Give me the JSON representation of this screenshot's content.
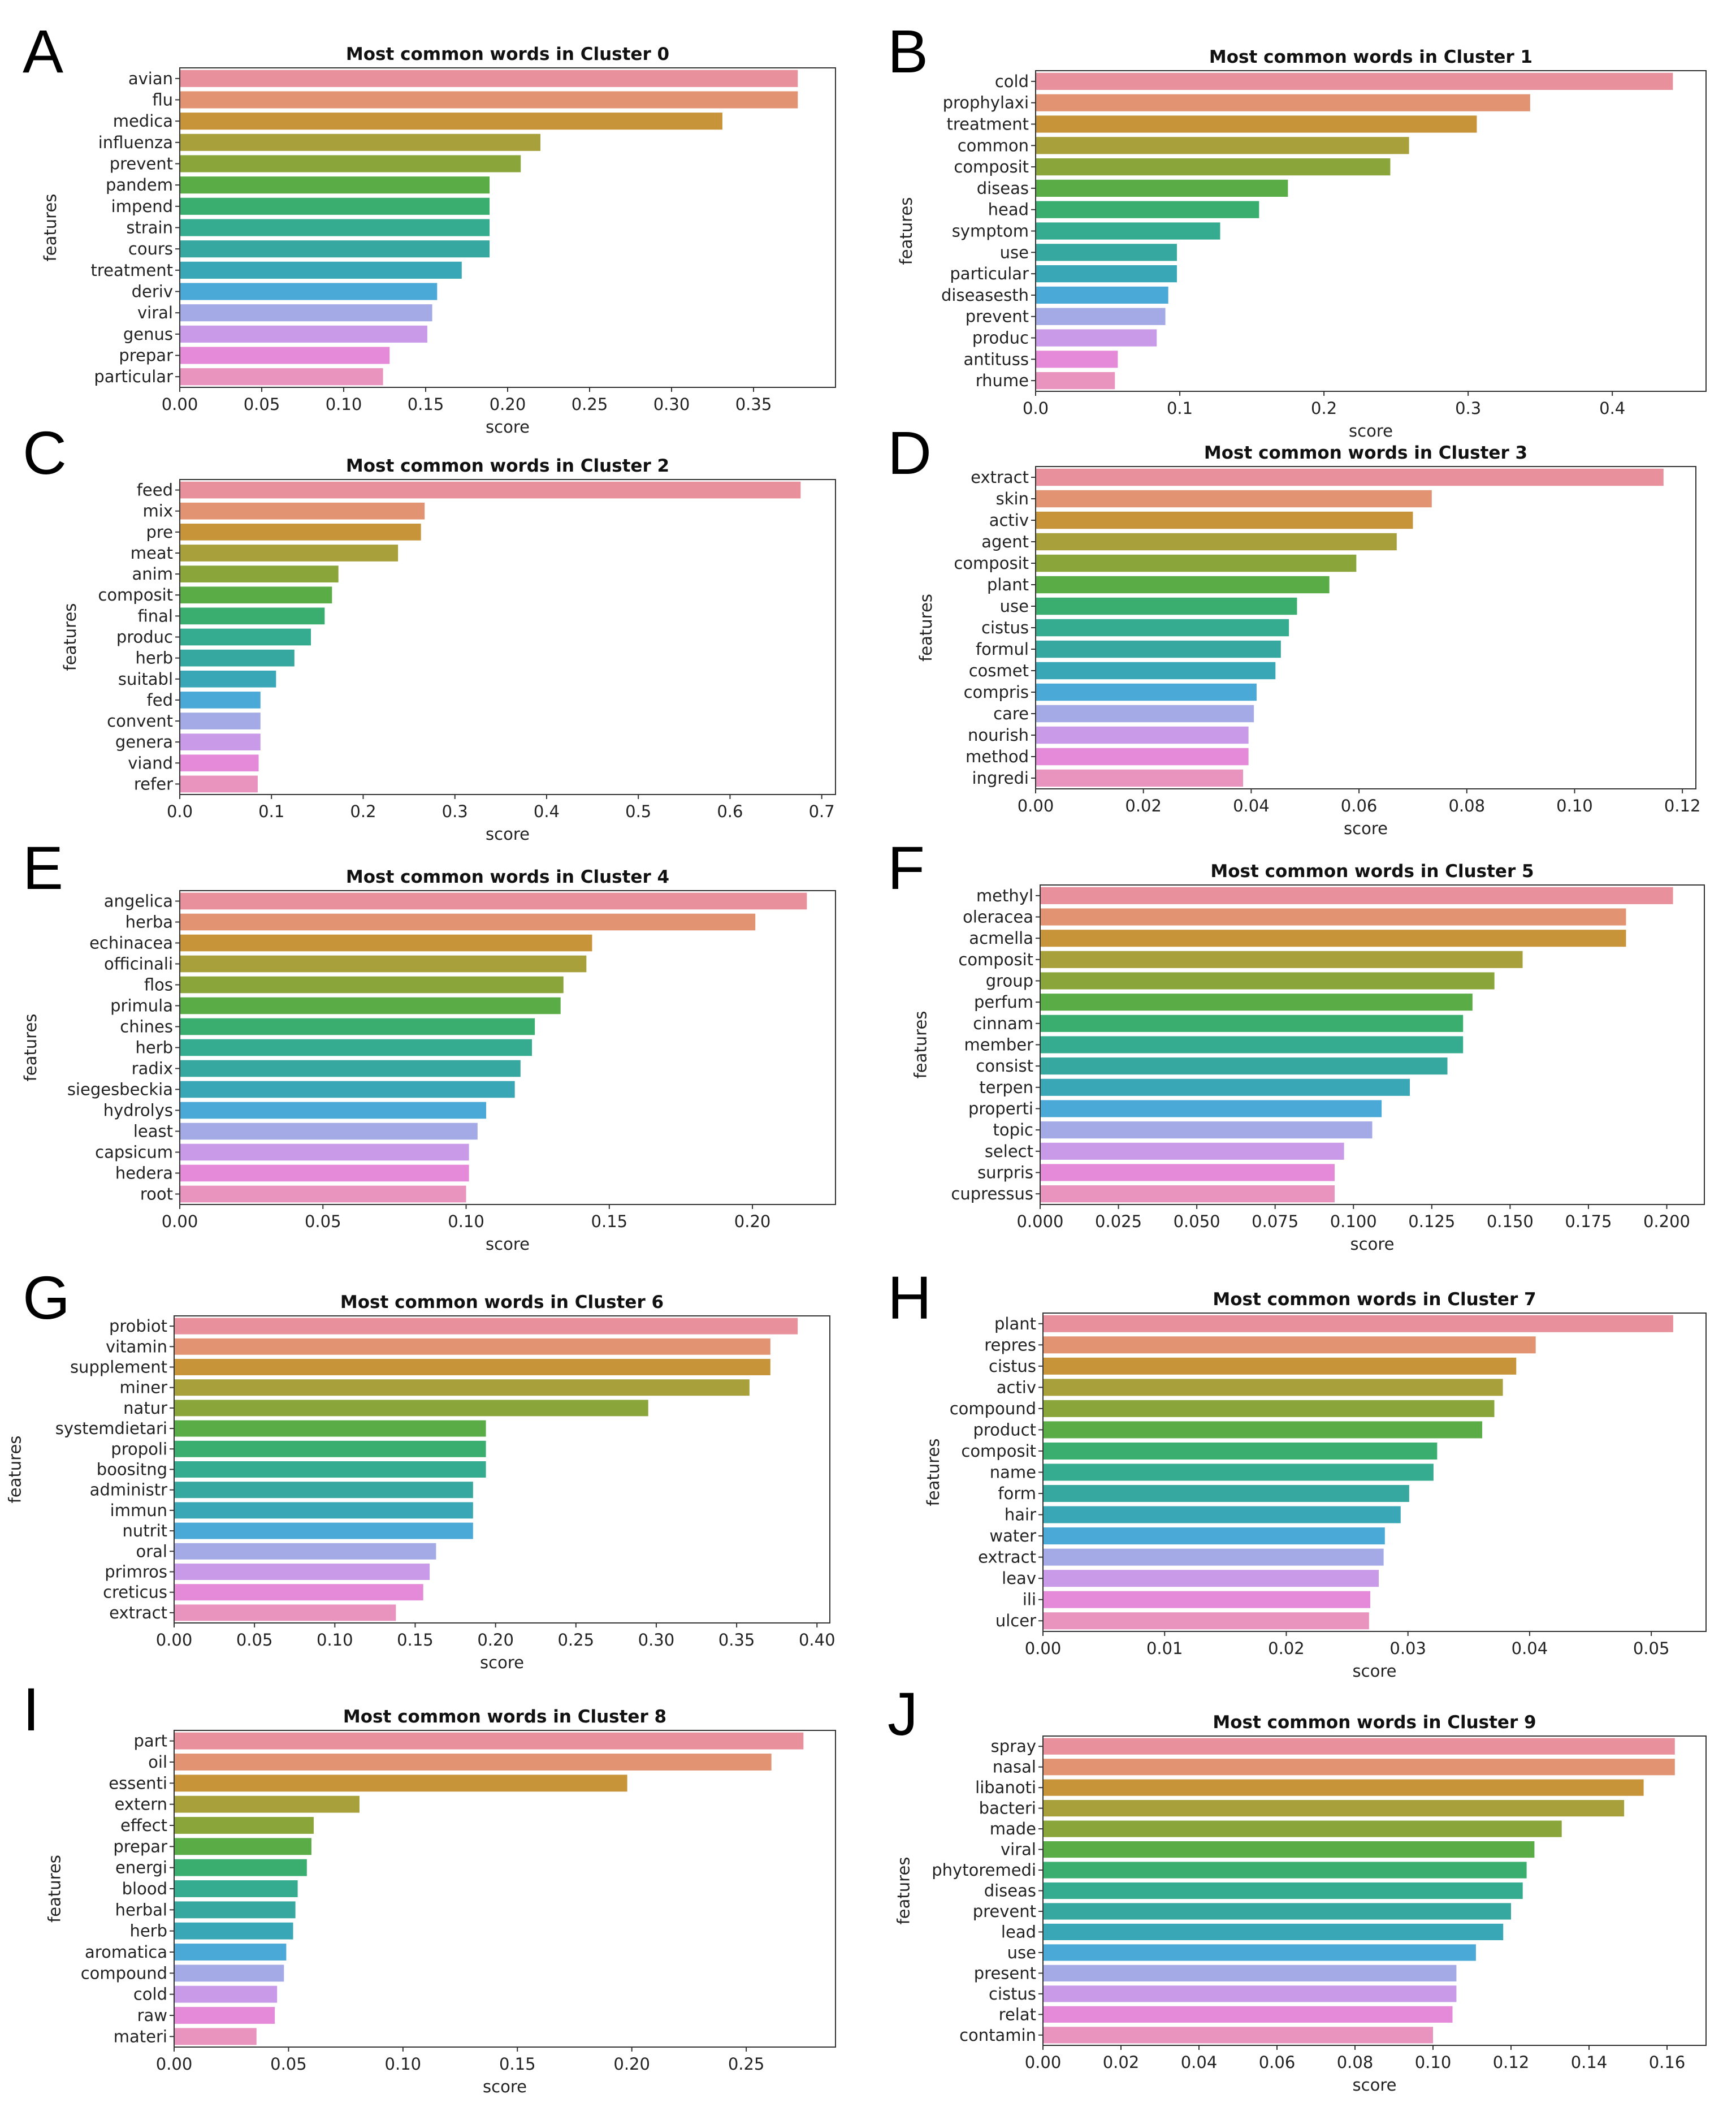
{
  "figure": {
    "xlabel": "score",
    "ylabel": "features"
  },
  "palette": [
    "#e8919c",
    "#e29472",
    "#c8943a",
    "#a8a03b",
    "#8aa63a",
    "#5aac46",
    "#3aae6e",
    "#35ab8f",
    "#36a89f",
    "#39a7b5",
    "#4aa9d6",
    "#a4aae6",
    "#c99ae8",
    "#e48ad8",
    "#e994bf"
  ],
  "chart_data": [
    {
      "panel": "A",
      "type": "bar",
      "orientation": "horizontal",
      "title": "Most common words in Cluster 0",
      "xlabel": "score",
      "ylabel": "features",
      "xlim": [
        0,
        0.4
      ],
      "xticks": [
        0.0,
        0.05,
        0.1,
        0.15,
        0.2,
        0.25,
        0.3,
        0.35
      ],
      "xtick_labels": [
        "0.00",
        "0.05",
        "0.10",
        "0.15",
        "0.20",
        "0.25",
        "0.30",
        "0.35"
      ],
      "categories": [
        "avian",
        "flu",
        "medica",
        "influenza",
        "prevent",
        "pandem",
        "impend",
        "strain",
        "cours",
        "treatment",
        "deriv",
        "viral",
        "genus",
        "prepar",
        "particular"
      ],
      "values": [
        0.377,
        0.377,
        0.331,
        0.22,
        0.208,
        0.189,
        0.189,
        0.189,
        0.189,
        0.172,
        0.157,
        0.154,
        0.151,
        0.128,
        0.124
      ]
    },
    {
      "panel": "B",
      "type": "bar",
      "orientation": "horizontal",
      "title": "Most common words in Cluster 1",
      "xlabel": "score",
      "ylabel": "features",
      "xlim": [
        0,
        0.465
      ],
      "xticks": [
        0.0,
        0.1,
        0.2,
        0.3,
        0.4
      ],
      "xtick_labels": [
        "0.0",
        "0.1",
        "0.2",
        "0.3",
        "0.4"
      ],
      "categories": [
        "cold",
        "prophylaxi",
        "treatment",
        "common",
        "composit",
        "diseas",
        "head",
        "symptom",
        "use",
        "particular",
        "diseasesth",
        "prevent",
        "produc",
        "antituss",
        "rhume"
      ],
      "values": [
        0.442,
        0.343,
        0.306,
        0.259,
        0.246,
        0.175,
        0.155,
        0.128,
        0.098,
        0.098,
        0.092,
        0.09,
        0.084,
        0.057,
        0.055
      ]
    },
    {
      "panel": "C",
      "type": "bar",
      "orientation": "horizontal",
      "title": "Most common words in Cluster 2",
      "xlabel": "score",
      "ylabel": "features",
      "xlim": [
        0,
        0.715
      ],
      "xticks": [
        0.0,
        0.1,
        0.2,
        0.3,
        0.4,
        0.5,
        0.6,
        0.7
      ],
      "xtick_labels": [
        "0.0",
        "0.1",
        "0.2",
        "0.3",
        "0.4",
        "0.5",
        "0.6",
        "0.7"
      ],
      "categories": [
        "feed",
        "mix",
        "pre",
        "meat",
        "anim",
        "composit",
        "final",
        "produc",
        "herb",
        "suitabl",
        "fed",
        "convent",
        "genera",
        "viand",
        "refer"
      ],
      "values": [
        0.677,
        0.267,
        0.263,
        0.238,
        0.173,
        0.166,
        0.158,
        0.143,
        0.125,
        0.105,
        0.088,
        0.088,
        0.088,
        0.086,
        0.085
      ]
    },
    {
      "panel": "D",
      "type": "bar",
      "orientation": "horizontal",
      "title": "Most common words in Cluster 3",
      "xlabel": "score",
      "ylabel": "features",
      "xlim": [
        0,
        0.1225
      ],
      "xticks": [
        0.0,
        0.02,
        0.04,
        0.06,
        0.08,
        0.1,
        0.12
      ],
      "xtick_labels": [
        "0.00",
        "0.02",
        "0.04",
        "0.06",
        "0.08",
        "0.10",
        "0.12"
      ],
      "categories": [
        "extract",
        "skin",
        "activ",
        "agent",
        "composit",
        "plant",
        "use",
        "cistus",
        "formul",
        "cosmet",
        "compris",
        "care",
        "nourish",
        "method",
        "ingredi"
      ],
      "values": [
        0.1165,
        0.0735,
        0.07,
        0.067,
        0.0595,
        0.0545,
        0.0485,
        0.047,
        0.0455,
        0.0445,
        0.041,
        0.0405,
        0.0395,
        0.0395,
        0.0385
      ]
    },
    {
      "panel": "E",
      "type": "bar",
      "orientation": "horizontal",
      "title": "Most common words in Cluster 4",
      "xlabel": "score",
      "ylabel": "features",
      "xlim": [
        0,
        0.229
      ],
      "xticks": [
        0.0,
        0.05,
        0.1,
        0.15,
        0.2
      ],
      "xtick_labels": [
        "0.00",
        "0.05",
        "0.10",
        "0.15",
        "0.20"
      ],
      "categories": [
        "angelica",
        "herba",
        "echinacea",
        "officinali",
        "flos",
        "primula",
        "chines",
        "herb",
        "radix",
        "siegesbeckia",
        "hydrolys",
        "least",
        "capsicum",
        "hedera",
        "root"
      ],
      "values": [
        0.219,
        0.201,
        0.144,
        0.142,
        0.134,
        0.133,
        0.124,
        0.123,
        0.119,
        0.117,
        0.107,
        0.104,
        0.101,
        0.101,
        0.1
      ]
    },
    {
      "panel": "F",
      "type": "bar",
      "orientation": "horizontal",
      "title": "Most common words in Cluster 5",
      "xlabel": "score",
      "ylabel": "features",
      "xlim": [
        0,
        0.212
      ],
      "xticks": [
        0.0,
        0.025,
        0.05,
        0.075,
        0.1,
        0.125,
        0.15,
        0.175,
        0.2
      ],
      "xtick_labels": [
        "0.000",
        "0.025",
        "0.050",
        "0.075",
        "0.100",
        "0.125",
        "0.150",
        "0.175",
        "0.200"
      ],
      "categories": [
        "methyl",
        "oleracea",
        "acmella",
        "composit",
        "group",
        "perfum",
        "cinnam",
        "member",
        "consist",
        "terpen",
        "properti",
        "topic",
        "select",
        "surpris",
        "cupressus"
      ],
      "values": [
        0.202,
        0.187,
        0.187,
        0.154,
        0.145,
        0.138,
        0.135,
        0.135,
        0.13,
        0.118,
        0.109,
        0.106,
        0.097,
        0.094,
        0.094
      ]
    },
    {
      "panel": "G",
      "type": "bar",
      "orientation": "horizontal",
      "title": "Most common words in Cluster 6",
      "xlabel": "score",
      "ylabel": "features",
      "xlim": [
        0,
        0.408
      ],
      "xticks": [
        0.0,
        0.05,
        0.1,
        0.15,
        0.2,
        0.25,
        0.3,
        0.35,
        0.4
      ],
      "xtick_labels": [
        "0.00",
        "0.05",
        "0.10",
        "0.15",
        "0.20",
        "0.25",
        "0.30",
        "0.35",
        "0.40"
      ],
      "categories": [
        "probiot",
        "vitamin",
        "supplement",
        "miner",
        "natur",
        "systemdietari",
        "propoli",
        "boositng",
        "administr",
        "immun",
        "nutrit",
        "oral",
        "primros",
        "creticus",
        "extract"
      ],
      "values": [
        0.388,
        0.371,
        0.371,
        0.358,
        0.295,
        0.194,
        0.194,
        0.194,
        0.186,
        0.186,
        0.186,
        0.163,
        0.159,
        0.155,
        0.138
      ]
    },
    {
      "panel": "H",
      "type": "bar",
      "orientation": "horizontal",
      "title": "Most common words in Cluster 7",
      "xlabel": "score",
      "ylabel": "features",
      "xlim": [
        0,
        0.0545
      ],
      "xticks": [
        0.0,
        0.01,
        0.02,
        0.03,
        0.04,
        0.05
      ],
      "xtick_labels": [
        "0.00",
        "0.01",
        "0.02",
        "0.03",
        "0.04",
        "0.05"
      ],
      "categories": [
        "plant",
        "repres",
        "cistus",
        "activ",
        "compound",
        "product",
        "composit",
        "name",
        "form",
        "hair",
        "water",
        "extract",
        "leav",
        "ili",
        "ulcer"
      ],
      "values": [
        0.0518,
        0.0405,
        0.0389,
        0.0378,
        0.0371,
        0.0361,
        0.0324,
        0.0321,
        0.0301,
        0.0294,
        0.0281,
        0.028,
        0.0276,
        0.0269,
        0.0268
      ]
    },
    {
      "panel": "I",
      "type": "bar",
      "orientation": "horizontal",
      "title": "Most common words in Cluster 8",
      "xlabel": "score",
      "ylabel": "features",
      "xlim": [
        0,
        0.289
      ],
      "xticks": [
        0.0,
        0.05,
        0.1,
        0.15,
        0.2,
        0.25
      ],
      "xtick_labels": [
        "0.00",
        "0.05",
        "0.10",
        "0.15",
        "0.20",
        "0.25"
      ],
      "categories": [
        "part",
        "oil",
        "essenti",
        "extern",
        "effect",
        "prepar",
        "energi",
        "blood",
        "herbal",
        "herb",
        "aromatica",
        "compound",
        "cold",
        "raw",
        "materi"
      ],
      "values": [
        0.275,
        0.261,
        0.198,
        0.081,
        0.061,
        0.06,
        0.058,
        0.054,
        0.053,
        0.052,
        0.049,
        0.048,
        0.045,
        0.044,
        0.036
      ]
    },
    {
      "panel": "J",
      "type": "bar",
      "orientation": "horizontal",
      "title": "Most common words in Cluster 9",
      "xlabel": "score",
      "ylabel": "features",
      "xlim": [
        0,
        0.17
      ],
      "xticks": [
        0.0,
        0.02,
        0.04,
        0.06,
        0.08,
        0.1,
        0.12,
        0.14,
        0.16
      ],
      "xtick_labels": [
        "0.00",
        "0.02",
        "0.04",
        "0.06",
        "0.08",
        "0.10",
        "0.12",
        "0.14",
        "0.16"
      ],
      "categories": [
        "spray",
        "nasal",
        "libanoti",
        "bacteri",
        "made",
        "viral",
        "phytoremedi",
        "diseas",
        "prevent",
        "lead",
        "use",
        "present",
        "cistus",
        "relat",
        "contamin"
      ],
      "values": [
        0.162,
        0.162,
        0.154,
        0.149,
        0.133,
        0.126,
        0.124,
        0.123,
        0.12,
        0.118,
        0.111,
        0.106,
        0.106,
        0.105,
        0.1
      ]
    }
  ]
}
